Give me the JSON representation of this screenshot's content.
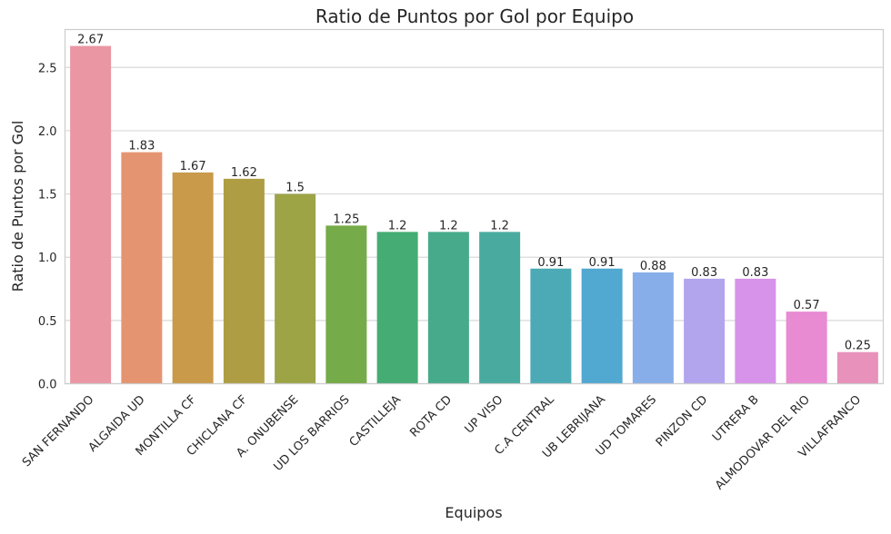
{
  "chart_data": {
    "type": "bar",
    "title": "Ratio de Puntos por Gol por Equipo",
    "xlabel": "Equipos",
    "ylabel": "Ratio de Puntos por Gol",
    "ylim": [
      0,
      2.8
    ],
    "yticks": [
      0.0,
      0.5,
      1.0,
      1.5,
      2.0,
      2.5
    ],
    "ytick_labels": [
      "0.0",
      "0.5",
      "1.0",
      "1.5",
      "2.0",
      "2.5"
    ],
    "grid": "horizontal",
    "categories": [
      "SAN FERNANDO",
      "ALGAIDA UD",
      "MONTILLA CF",
      "CHICLANA CF",
      "A. ONUBENSE",
      "UD LOS BARRIOS",
      "CASTILLEJA",
      "ROTA CD",
      "UP VISO",
      "C.A CENTRAL",
      "UB LEBRIJANA",
      "UD TOMARES",
      "PINZON CD",
      "UTRERA B",
      "ALMODOVAR DEL RIO",
      "VILLAFRANCO"
    ],
    "values": [
      2.67,
      1.83,
      1.67,
      1.62,
      1.5,
      1.25,
      1.2,
      1.2,
      1.2,
      0.91,
      0.91,
      0.88,
      0.83,
      0.83,
      0.57,
      0.25
    ],
    "value_labels": [
      "2.67",
      "1.83",
      "1.67",
      "1.62",
      "1.5",
      "1.25",
      "1.2",
      "1.2",
      "1.2",
      "0.91",
      "0.91",
      "0.88",
      "0.83",
      "0.83",
      "0.57",
      "0.25"
    ],
    "colors": [
      "#ea96a3",
      "#e59471",
      "#c99a49",
      "#ae9d43",
      "#9ca446",
      "#75ab48",
      "#45ac73",
      "#47ab8b",
      "#49ab9f",
      "#4baab5",
      "#51a8d1",
      "#87aee8",
      "#b3a4ee",
      "#d793e9",
      "#e88bd3",
      "#e891bb"
    ]
  }
}
